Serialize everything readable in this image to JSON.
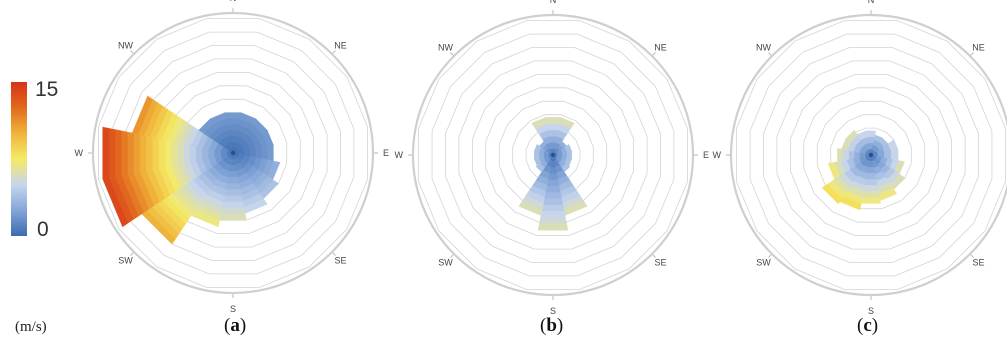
{
  "chart_data": [
    {
      "type": "wind-rose",
      "panel_label": "a",
      "directions": [
        "N",
        "NE",
        "E",
        "SE",
        "S",
        "SW",
        "W",
        "NW"
      ],
      "sectors": 16,
      "rings": 10,
      "sector_extent": [
        0.3,
        0.3,
        0.3,
        0.3,
        0.3,
        0.35,
        0.4,
        0.45,
        0.5,
        0.55,
        0.8,
        0.97,
        0.97,
        0.75,
        0.3,
        0.3
      ],
      "sector_max_speed": [
        2,
        2,
        2,
        2,
        2,
        3,
        4,
        5,
        6,
        7,
        10,
        14,
        14,
        11,
        2,
        2
      ]
    },
    {
      "type": "wind-rose",
      "panel_label": "b",
      "directions": [
        "N",
        "NE",
        "E",
        "SE",
        "S",
        "SW",
        "W",
        "NW"
      ],
      "sectors": 16,
      "rings": 10,
      "sector_extent": [
        0.28,
        0.28,
        0.12,
        0.14,
        0.14,
        0.14,
        0.15,
        0.45,
        0.56,
        0.45,
        0.15,
        0.14,
        0.14,
        0.14,
        0.12,
        0.28
      ],
      "sector_max_speed": [
        6,
        6,
        3,
        4,
        4,
        4,
        4,
        6,
        6,
        6,
        4,
        4,
        4,
        4,
        3,
        6
      ]
    },
    {
      "type": "wind-rose",
      "panel_label": "c",
      "directions": [
        "N",
        "NE",
        "E",
        "SE",
        "S",
        "SW",
        "W",
        "NW"
      ],
      "sectors": 16,
      "rings": 10,
      "sector_extent": [
        0.18,
        0.15,
        0.15,
        0.2,
        0.2,
        0.25,
        0.3,
        0.34,
        0.36,
        0.41,
        0.43,
        0.32,
        0.25,
        0.22,
        0.22,
        0.18
      ],
      "sector_max_speed": [
        5,
        4,
        4,
        5,
        5,
        6,
        6,
        7,
        7,
        8,
        8,
        7,
        6,
        6,
        6,
        5
      ]
    }
  ],
  "colorbar": {
    "min_label": "0",
    "max_label": "15",
    "min": 0,
    "max": 15,
    "unit_label": "(m/s)",
    "stops": [
      "#3a6bb0",
      "#84a6d8",
      "#c7d5ec",
      "#f5eb66",
      "#f0b33a",
      "#e26a1e",
      "#d6321a"
    ]
  },
  "subfigure_labels": [
    {
      "open": "(",
      "letter": "a",
      "close": ")"
    },
    {
      "open": "(",
      "letter": "b",
      "close": ")"
    },
    {
      "open": "(",
      "letter": "c",
      "close": ")"
    }
  ],
  "colors": {
    "ring": "#d4d4d4",
    "outer_circle": "#cfcfcf",
    "tick": "#b9b9b9"
  }
}
